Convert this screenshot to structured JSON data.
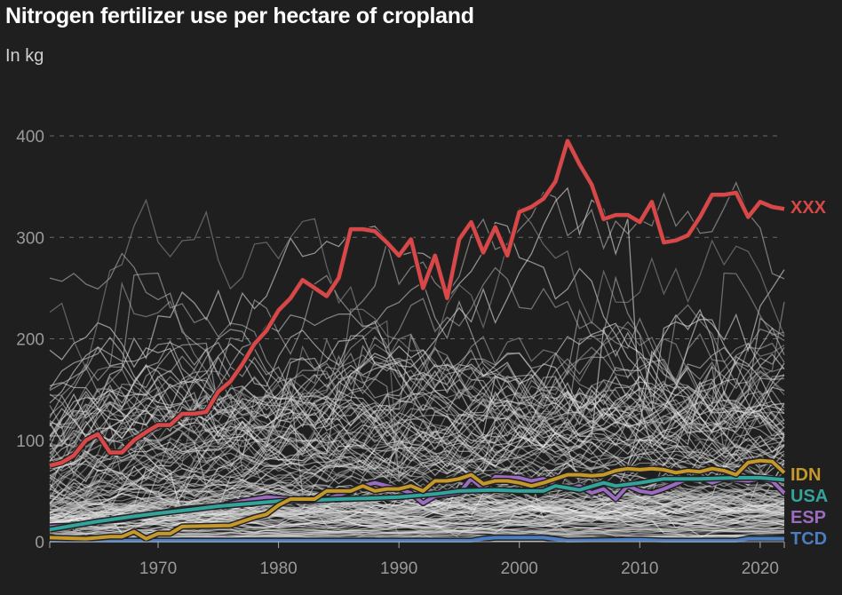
{
  "chart_data": {
    "type": "line",
    "title": "Nitrogen fertilizer use per hectare of cropland",
    "subtitle": "In kg",
    "xlabel": "",
    "ylabel": "",
    "xlim": [
      1961,
      2022
    ],
    "ylim": [
      0,
      420
    ],
    "x_ticks": [
      1970,
      1980,
      1990,
      2000,
      2010,
      2020
    ],
    "y_ticks": [
      0,
      100,
      200,
      300,
      400
    ],
    "grid": "horizontal dashed at 200, 300, 400",
    "background_series_count": 160,
    "series": [
      {
        "name": "XXX",
        "color": "#d94848",
        "x": [
          1961,
          1962,
          1963,
          1964,
          1965,
          1966,
          1967,
          1968,
          1969,
          1970,
          1971,
          1972,
          1973,
          1974,
          1975,
          1976,
          1977,
          1978,
          1979,
          1980,
          1981,
          1982,
          1983,
          1984,
          1985,
          1986,
          1987,
          1988,
          1989,
          1990,
          1991,
          1992,
          1993,
          1994,
          1995,
          1996,
          1997,
          1998,
          1999,
          2000,
          2001,
          2002,
          2003,
          2004,
          2005,
          2006,
          2007,
          2008,
          2009,
          2010,
          2011,
          2012,
          2013,
          2014,
          2015,
          2016,
          2017,
          2018,
          2019,
          2020,
          2021,
          2022
        ],
        "y": [
          75,
          78,
          85,
          100,
          106,
          88,
          88,
          100,
          108,
          115,
          115,
          126,
          126,
          128,
          148,
          158,
          175,
          195,
          208,
          228,
          240,
          258,
          250,
          242,
          260,
          308,
          308,
          306,
          295,
          282,
          298,
          250,
          282,
          240,
          298,
          315,
          285,
          310,
          282,
          325,
          330,
          338,
          355,
          395,
          372,
          352,
          318,
          322,
          322,
          315,
          335,
          295,
          297,
          302,
          320,
          342,
          342,
          344,
          320,
          335,
          330,
          328
        ]
      },
      {
        "name": "IDN",
        "color": "#c4982a",
        "x": [
          1961,
          1964,
          1966,
          1967,
          1968,
          1969,
          1970,
          1971,
          1972,
          1976,
          1977,
          1978,
          1979,
          1980,
          1981,
          1983,
          1984,
          1986,
          1987,
          1988,
          1989,
          1990,
          1991,
          1992,
          1993,
          1994,
          1995,
          1996,
          1997,
          1998,
          1999,
          2000,
          2001,
          2002,
          2003,
          2004,
          2005,
          2006,
          2007,
          2008,
          2009,
          2010,
          2011,
          2012,
          2013,
          2014,
          2015,
          2016,
          2017,
          2018,
          2019,
          2020,
          2021,
          2022
        ],
        "y": [
          4,
          3,
          5,
          5,
          10,
          3,
          8,
          8,
          15,
          16,
          20,
          24,
          27,
          36,
          42,
          42,
          50,
          50,
          55,
          50,
          52,
          52,
          55,
          50,
          60,
          60,
          62,
          66,
          57,
          60,
          60,
          58,
          55,
          58,
          62,
          66,
          66,
          65,
          66,
          70,
          72,
          71,
          72,
          71,
          68,
          70,
          69,
          72,
          70,
          66,
          78,
          80,
          79,
          68
        ]
      },
      {
        "name": "USA",
        "color": "#33a39c",
        "x": [
          1961,
          1963,
          1965,
          1968,
          1970,
          1973,
          1975,
          1978,
          1980,
          1983,
          1985,
          1988,
          1990,
          1993,
          1995,
          1998,
          2000,
          2002,
          2003,
          2005,
          2007,
          2008,
          2010,
          2012,
          2015,
          2018,
          2020,
          2022
        ],
        "y": [
          12,
          16,
          20,
          25,
          28,
          32,
          35,
          38,
          40,
          41,
          42,
          43,
          44,
          47,
          50,
          51,
          50,
          50,
          55,
          51,
          58,
          55,
          58,
          62,
          62,
          63,
          63,
          61
        ]
      },
      {
        "name": "ESP",
        "color": "#9b6cc0",
        "x": [
          1961,
          1963,
          1965,
          1967,
          1970,
          1972,
          1975,
          1977,
          1979,
          1981,
          1982,
          1984,
          1986,
          1987,
          1988,
          1990,
          1991,
          1992,
          1993,
          1995,
          1996,
          1997,
          1998,
          2000,
          2001,
          2002,
          2003,
          2004,
          2005,
          2006,
          2007,
          2008,
          2009,
          2010,
          2011,
          2012,
          2014,
          2015,
          2016,
          2017,
          2019,
          2020,
          2021,
          2022
        ],
        "y": [
          15,
          16,
          20,
          22,
          28,
          32,
          35,
          40,
          44,
          42,
          40,
          42,
          50,
          55,
          58,
          52,
          48,
          38,
          45,
          48,
          62,
          52,
          64,
          63,
          60,
          62,
          56,
          52,
          55,
          48,
          52,
          42,
          55,
          50,
          48,
          52,
          62,
          63,
          58,
          62,
          60,
          62,
          60,
          48
        ]
      },
      {
        "name": "TCD",
        "color": "#4a7ec0",
        "x": [
          1961,
          1970,
          1980,
          1990,
          1996,
          1997,
          1998,
          2002,
          2004,
          2010,
          2012,
          2018,
          2019,
          2022
        ],
        "y": [
          1,
          1,
          1,
          1,
          1,
          3,
          4,
          4,
          1,
          2,
          1,
          1,
          3,
          3
        ]
      }
    ]
  }
}
